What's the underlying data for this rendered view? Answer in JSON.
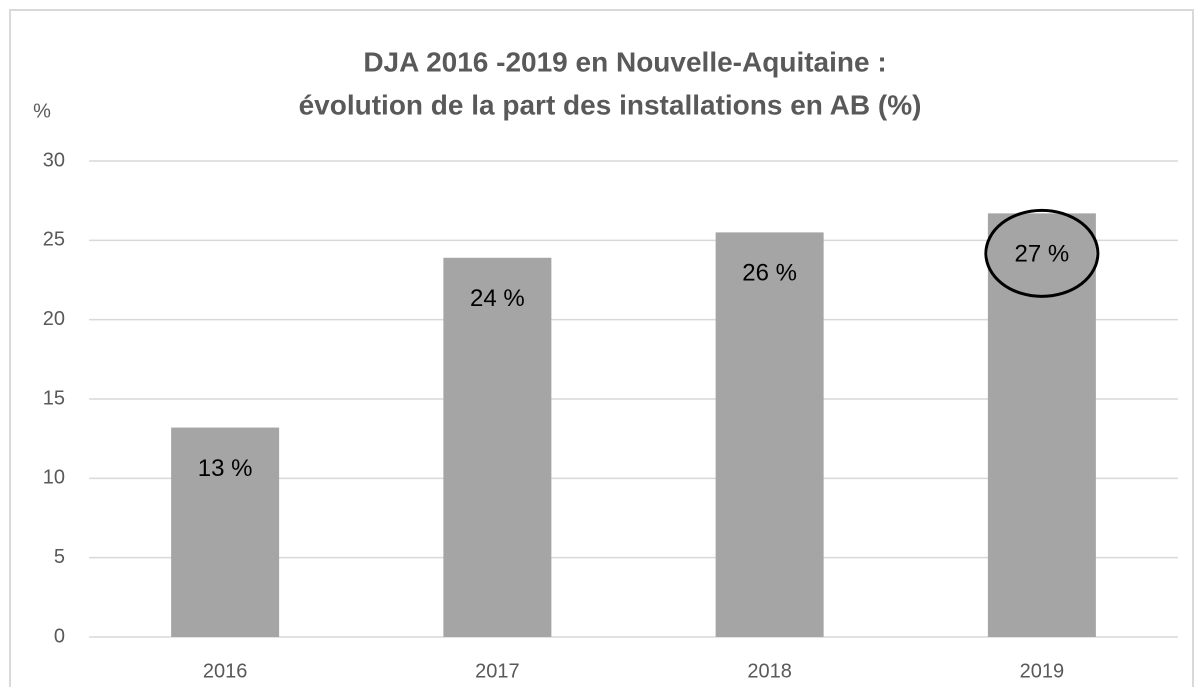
{
  "chart_data": {
    "type": "bar",
    "title": [
      "DJA 2016 -2019 en Nouvelle-Aquitaine :",
      "évolution de la part des installations en AB (%)"
    ],
    "y_label": "%",
    "categories": [
      "2016",
      "2017",
      "2018",
      "2019"
    ],
    "values": [
      13.2,
      23.9,
      25.5,
      26.7
    ],
    "value_labels": [
      "13 %",
      "24 %",
      "26 %",
      "27 %"
    ],
    "color": "#a5a5a5",
    "ylim": [
      0,
      30
    ],
    "yticks": [
      0,
      5,
      10,
      15,
      20,
      25,
      30
    ],
    "grid": true
  }
}
